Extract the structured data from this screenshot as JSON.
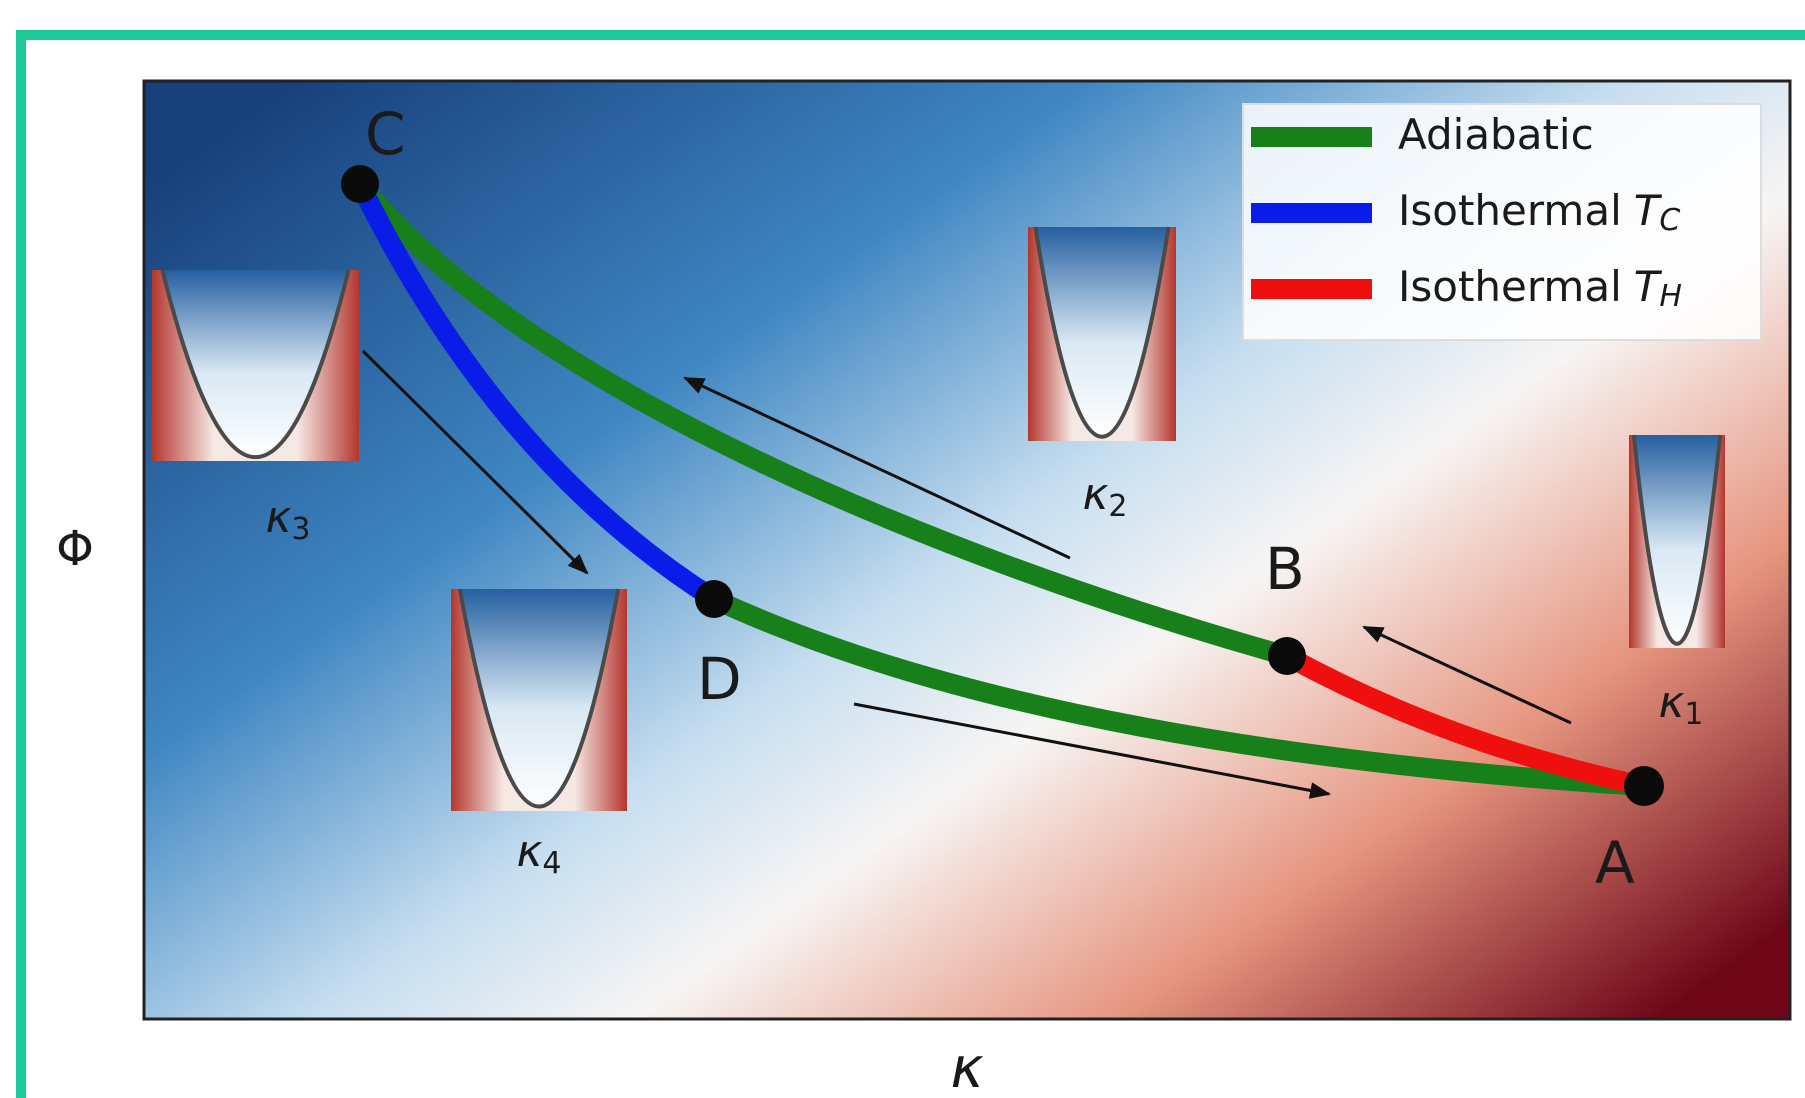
{
  "axes": {
    "y_label": "Φ",
    "x_label": "κ"
  },
  "legend": [
    {
      "label": "Adiabatic",
      "color": "#17801a"
    },
    {
      "label": "Isothermal",
      "symbol": "T",
      "subscript": "C",
      "color": "#0a1de8"
    },
    {
      "label": "Isothermal",
      "symbol": "T",
      "subscript": "H",
      "color": "#ef0f0f"
    }
  ],
  "points": [
    "A",
    "B",
    "C",
    "D"
  ],
  "insets": [
    {
      "symbol": "κ",
      "subscript": "1"
    },
    {
      "symbol": "κ",
      "subscript": "2"
    },
    {
      "symbol": "κ",
      "subscript": "3"
    },
    {
      "symbol": "κ",
      "subscript": "4"
    }
  ]
}
